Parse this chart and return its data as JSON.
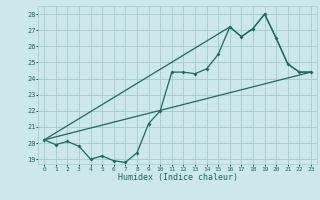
{
  "xlabel": "Humidex (Indice chaleur)",
  "bg_color": "#cce8e8",
  "grid_color": "#aacfcf",
  "line_color": "#1a6b5a",
  "xlim": [
    -0.5,
    23.5
  ],
  "ylim": [
    18.7,
    28.5
  ],
  "xticks": [
    0,
    1,
    2,
    3,
    4,
    5,
    6,
    7,
    8,
    9,
    10,
    11,
    12,
    13,
    14,
    15,
    16,
    17,
    18,
    19,
    20,
    21,
    22,
    23
  ],
  "yticks": [
    19,
    20,
    21,
    22,
    23,
    24,
    25,
    26,
    27,
    28
  ],
  "line1_x": [
    0,
    1,
    2,
    3,
    4,
    5,
    6,
    7,
    8,
    9,
    10,
    11,
    12,
    13,
    14,
    15,
    16,
    17,
    18,
    19,
    20,
    21,
    22,
    23
  ],
  "line1_y": [
    20.2,
    19.9,
    20.1,
    19.8,
    19.0,
    19.2,
    18.9,
    18.8,
    19.4,
    21.2,
    22.0,
    24.4,
    24.4,
    24.3,
    24.6,
    25.5,
    27.2,
    26.6,
    27.1,
    28.0,
    26.5,
    24.9,
    24.4,
    24.4
  ],
  "line2_x": [
    0,
    16,
    17,
    18,
    19,
    20,
    21,
    22,
    23
  ],
  "line2_y": [
    20.2,
    27.2,
    26.6,
    27.1,
    28.0,
    26.5,
    24.9,
    24.4,
    24.4
  ],
  "line3_x": [
    0,
    23
  ],
  "line3_y": [
    20.2,
    24.4
  ]
}
